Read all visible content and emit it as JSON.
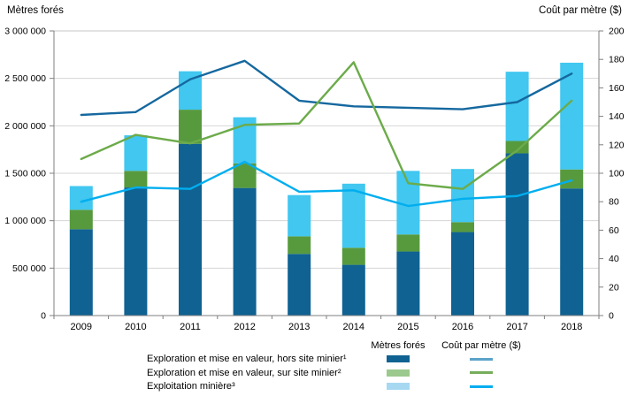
{
  "chart_data": {
    "type": "bar+line",
    "categories": [
      "2009",
      "2010",
      "2011",
      "2012",
      "2013",
      "2014",
      "2015",
      "2016",
      "2017",
      "2018"
    ],
    "left_axis": {
      "title": "Mètres forés",
      "min": 0,
      "max": 3000000,
      "tick_step": 500000,
      "tick_labels": [
        "0",
        "500 000",
        "1 000 000",
        "1 500 000",
        "2 000 000",
        "2 500 000",
        "3 000 000"
      ]
    },
    "right_axis": {
      "title": "Coût par mètre ($)",
      "min": 0,
      "max": 200,
      "tick_step": 20,
      "tick_labels": [
        "0",
        "20",
        "40",
        "60",
        "80",
        "100",
        "120",
        "140",
        "160",
        "180",
        "200"
      ]
    },
    "grid": true,
    "bar_series": [
      {
        "name": "Exploration et mise en valeur, hors site minier¹",
        "stack": "metres",
        "color": "#0f6292",
        "values": [
          910000,
          1350000,
          1810000,
          1345000,
          650000,
          535000,
          675000,
          880000,
          1710000,
          1340000
        ]
      },
      {
        "name": "Exploration et mise en valeur, sur site minier²",
        "stack": "metres",
        "color": "#579a3e",
        "values": [
          205000,
          175000,
          360000,
          260000,
          185000,
          180000,
          180000,
          105000,
          130000,
          200000
        ]
      },
      {
        "name": "Exploitation minière³",
        "stack": "metres",
        "color": "#41c7f0",
        "values": [
          250000,
          375000,
          405000,
          485000,
          435000,
          675000,
          670000,
          560000,
          730000,
          1125000
        ]
      }
    ],
    "line_series": [
      {
        "name": "Coût par mètre — Exploration et mise en valeur, hors site minier¹",
        "color": "#15689f",
        "values": [
          141,
          143,
          166,
          179,
          151,
          147,
          146,
          145,
          150,
          170
        ]
      },
      {
        "name": "Coût par mètre — Exploration et mise en valeur, sur site minier²",
        "color": "#6cab4a",
        "values": [
          110,
          127,
          121,
          134,
          135,
          178,
          93,
          89,
          116,
          151
        ]
      },
      {
        "name": "Coût par mètre — Exploitation minière³",
        "color": "#00aeef",
        "values": [
          80,
          90,
          89,
          108,
          87,
          88,
          77,
          82,
          84,
          95
        ]
      }
    ],
    "style_colors": {
      "gridline": "#d6d6d6",
      "top_gridline": "#c4c4c4",
      "axis_line": "#7f7f7f",
      "tick": "#7f7f7f",
      "label_text": "#000000"
    }
  },
  "titles": {
    "left": "Mètres forés",
    "right": "Coût par mètre ($)"
  },
  "legend": {
    "col_headers": [
      "Mètres forés",
      "Coût par mètre ($)"
    ],
    "rows": [
      {
        "label": "Exploration et mise en valeur, hors site minier¹",
        "bar_color": "#0f6292",
        "line_color": "#5ba3c9"
      },
      {
        "label": "Exploration et mise en valeur, sur site minier²",
        "bar_color": "#9cc98e",
        "line_color": "#76ad5c"
      },
      {
        "label": "Exploitation minière³",
        "bar_color": "#a7d8f2",
        "line_color": "#00aeef"
      }
    ]
  }
}
